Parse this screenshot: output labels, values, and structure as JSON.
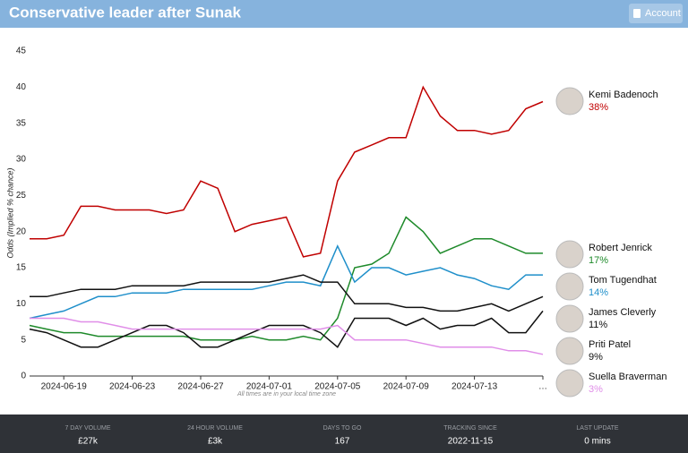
{
  "header": {
    "account": "Account"
  },
  "chart_data": {
    "type": "line",
    "title": "Conservative leader after Sunak",
    "ylabel": "Odds (Implied % chance)",
    "note": "All times are in your local time zone",
    "x": [
      "2024-06-17",
      "2024-06-18",
      "2024-06-19",
      "2024-06-20",
      "2024-06-21",
      "2024-06-22",
      "2024-06-23",
      "2024-06-24",
      "2024-06-25",
      "2024-06-26",
      "2024-06-27",
      "2024-06-28",
      "2024-06-29",
      "2024-06-30",
      "2024-07-01",
      "2024-07-02",
      "2024-07-03",
      "2024-07-04",
      "2024-07-05",
      "2024-07-06",
      "2024-07-07",
      "2024-07-08",
      "2024-07-09",
      "2024-07-10",
      "2024-07-11",
      "2024-07-12",
      "2024-07-13",
      "2024-07-14",
      "2024-07-15",
      "2024-07-16",
      "2024-07-17"
    ],
    "xlim": [
      "2024-06-17",
      "2024-07-17"
    ],
    "xticks": [
      "2024-06-19",
      "2024-06-23",
      "2024-06-27",
      "2024-07-01",
      "2024-07-05",
      "2024-07-09",
      "2024-07-13",
      {
        "value": "2024-07-17",
        "label": "…"
      }
    ],
    "ylim": [
      0,
      45
    ],
    "yticks": [
      0,
      5,
      10,
      15,
      20,
      25,
      30,
      35,
      40,
      45
    ],
    "grid": false,
    "series": [
      {
        "name": "Kemi Badenoch",
        "color": "#c00000",
        "values": [
          19,
          19,
          19.5,
          23.5,
          23.5,
          23,
          23,
          23,
          22.5,
          23,
          27,
          26,
          20,
          21,
          21.5,
          22,
          16.5,
          17,
          27,
          31,
          32,
          33,
          33,
          40,
          36,
          34,
          34,
          33.5,
          34,
          37,
          38
        ],
        "value_labels": [
          null,
          null,
          null,
          null,
          null,
          null,
          null,
          null,
          null,
          null,
          null,
          null,
          null,
          null,
          null,
          null,
          null,
          null,
          null,
          null,
          null,
          null,
          null,
          null,
          null,
          null,
          null,
          null,
          null,
          null,
          "38%"
        ]
      },
      {
        "name": "Robert Jenrick",
        "color": "#1e8a2a",
        "values": [
          7,
          6.5,
          6,
          6,
          5.5,
          5.5,
          5.5,
          5.5,
          5.5,
          5.5,
          5,
          5,
          5,
          5.5,
          5,
          5,
          5.5,
          5,
          8,
          15,
          15.5,
          17,
          22,
          20,
          17,
          18,
          19,
          19,
          18,
          17,
          17
        ],
        "value_labels": [
          null,
          null,
          null,
          null,
          null,
          null,
          null,
          null,
          null,
          null,
          null,
          null,
          null,
          null,
          null,
          null,
          null,
          null,
          null,
          null,
          null,
          null,
          null,
          null,
          null,
          null,
          null,
          null,
          null,
          null,
          "17%"
        ]
      },
      {
        "name": "Tom Tugendhat",
        "color": "#1f8fca",
        "values": [
          8,
          8.5,
          9,
          10,
          11,
          11,
          11.5,
          11.5,
          11.5,
          12,
          12,
          12,
          12,
          12,
          12.5,
          13,
          13,
          12.5,
          18,
          13,
          15,
          15,
          14,
          14.5,
          15,
          14,
          13.5,
          12.5,
          12,
          14,
          14
        ],
        "value_labels": [
          null,
          null,
          null,
          null,
          null,
          null,
          null,
          null,
          null,
          null,
          null,
          null,
          null,
          null,
          null,
          null,
          null,
          null,
          null,
          null,
          null,
          null,
          null,
          null,
          null,
          null,
          null,
          null,
          null,
          null,
          "14%"
        ]
      },
      {
        "name": "James Cleverly",
        "color": "#111111",
        "values": [
          11,
          11,
          11.5,
          12,
          12,
          12,
          12.5,
          12.5,
          12.5,
          12.5,
          13,
          13,
          13,
          13,
          13,
          13.5,
          14,
          13,
          13,
          10,
          10,
          10,
          9.5,
          9.5,
          9,
          9,
          9.5,
          10,
          9,
          10,
          11
        ],
        "value_labels": [
          null,
          null,
          null,
          null,
          null,
          null,
          null,
          null,
          null,
          null,
          null,
          null,
          null,
          null,
          null,
          null,
          null,
          null,
          null,
          null,
          null,
          null,
          null,
          null,
          null,
          null,
          null,
          null,
          null,
          null,
          "11%"
        ]
      },
      {
        "name": "Priti Patel",
        "color": "#111111",
        "values": [
          6.5,
          6,
          5,
          4,
          4,
          5,
          6,
          7,
          7,
          6,
          4,
          4,
          5,
          6,
          7,
          7,
          7,
          6,
          4,
          8,
          8,
          8,
          7,
          8,
          6.5,
          7,
          7,
          8,
          6,
          6,
          9
        ],
        "value_labels": [
          null,
          null,
          null,
          null,
          null,
          null,
          null,
          null,
          null,
          null,
          null,
          null,
          null,
          null,
          null,
          null,
          null,
          null,
          null,
          null,
          null,
          null,
          null,
          null,
          null,
          null,
          null,
          null,
          null,
          null,
          "9%"
        ]
      },
      {
        "name": "Suella Braverman",
        "color": "#e08ee8",
        "values": [
          8,
          8,
          8,
          7.5,
          7.5,
          7,
          6.5,
          6.5,
          6.5,
          6.5,
          6.5,
          6.5,
          6.5,
          6.5,
          6.5,
          6.5,
          6.5,
          6.5,
          7,
          5,
          5,
          5,
          5,
          4.5,
          4,
          4,
          4,
          4,
          3.5,
          3.5,
          3
        ],
        "value_labels": [
          null,
          null,
          null,
          null,
          null,
          null,
          null,
          null,
          null,
          null,
          null,
          null,
          null,
          null,
          null,
          null,
          null,
          null,
          null,
          null,
          null,
          null,
          null,
          null,
          null,
          null,
          null,
          null,
          null,
          null,
          "3%"
        ]
      }
    ]
  },
  "footer": {
    "stats": [
      {
        "label": "7 DAY VOLUME",
        "value": "£27k"
      },
      {
        "label": "24 HOUR VOLUME",
        "value": "£3k"
      },
      {
        "label": "DAYS TO GO",
        "value": "167"
      },
      {
        "label": "TRACKING SINCE",
        "value": "2022-11-15"
      },
      {
        "label": "LAST UPDATE",
        "value": "0 mins"
      }
    ]
  }
}
